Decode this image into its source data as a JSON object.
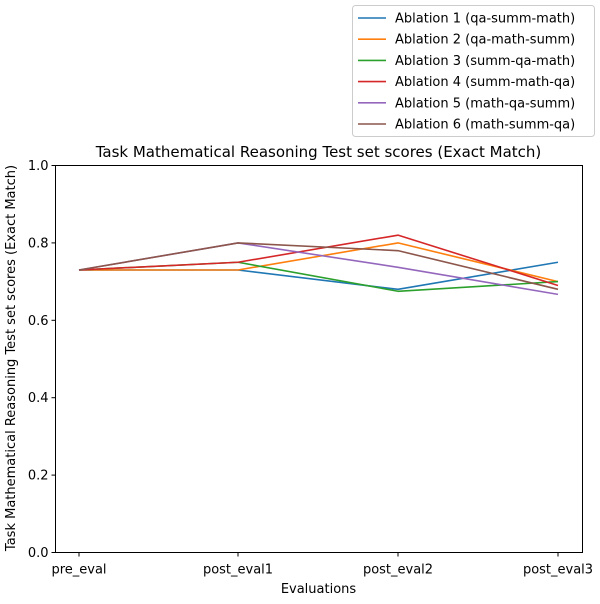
{
  "chart_data": {
    "type": "line",
    "title": "Task Mathematical Reasoning Test set scores (Exact Match)",
    "xlabel": "Evaluations",
    "ylabel": "Task Mathematical Reasoning Test set scores (Exact Match)",
    "categories": [
      "pre_eval",
      "post_eval1",
      "post_eval2",
      "post_eval3"
    ],
    "ylim": [
      0,
      1.0
    ],
    "yticks": [
      "0.0",
      "0.2",
      "0.4",
      "0.6",
      "0.8",
      "1.0"
    ],
    "grid": false,
    "legend_position": "top-right, above plot",
    "series": [
      {
        "name": "Ablation 1 (qa-summ-math)",
        "color": "#1f77b4",
        "values": [
          0.73,
          0.73,
          0.68,
          0.75
        ]
      },
      {
        "name": "Ablation 2 (qa-math-summ)",
        "color": "#ff7f0e",
        "values": [
          0.73,
          0.73,
          0.8,
          0.7
        ]
      },
      {
        "name": "Ablation 3 (summ-qa-math)",
        "color": "#2ca02c",
        "values": [
          0.73,
          0.75,
          0.675,
          0.7
        ]
      },
      {
        "name": "Ablation 4 (summ-math-qa)",
        "color": "#d62728",
        "values": [
          0.73,
          0.75,
          0.82,
          0.69
        ]
      },
      {
        "name": "Ablation 5 (math-qa-summ)",
        "color": "#9467bd",
        "values": [
          0.73,
          0.8,
          0.737,
          0.667
        ]
      },
      {
        "name": "Ablation 6 (math-summ-qa)",
        "color": "#8c564b",
        "values": [
          0.73,
          0.8,
          0.78,
          0.68
        ]
      }
    ]
  }
}
